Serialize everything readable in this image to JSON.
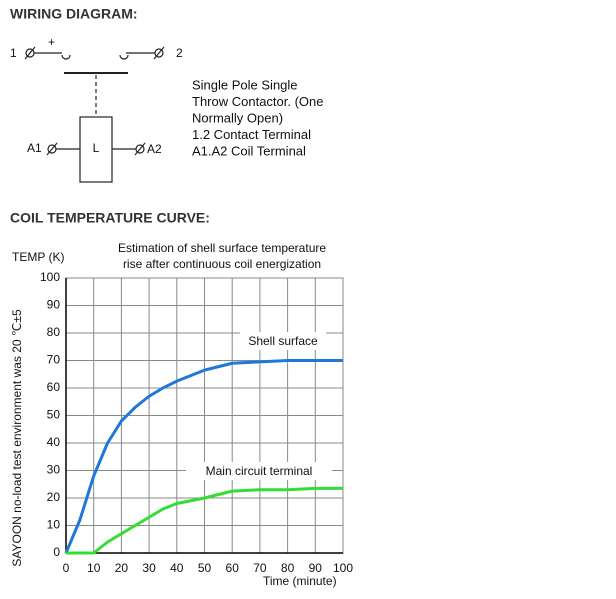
{
  "headings": [
    "WIRING DIAGRAM:",
    "COIL TEMPERATURE CURVE:"
  ],
  "wiring": {
    "terminal_1": "1",
    "plus": "+",
    "terminal_2": "2",
    "coil_a1": "A1",
    "coil": "L",
    "coil_a2": "A2",
    "description": [
      "Single Pole Single",
      "Throw Contactor. (One",
      "Normally Open)",
      "1.2 Contact Terminal",
      "A1.A2 Coil Terminal"
    ]
  },
  "chart_data": {
    "type": "line",
    "title": [
      "Estimation of shell surface temperature",
      "rise after continuous coil energization"
    ],
    "y_label": "TEMP (K)",
    "x_label": "Time (minute)",
    "side_note": "SAYOON no-load test environment was 20 ℃±5",
    "xlim": [
      0,
      100
    ],
    "ylim": [
      0,
      100
    ],
    "xticks": [
      0,
      10,
      20,
      30,
      40,
      50,
      60,
      70,
      80,
      90,
      100
    ],
    "yticks": [
      0,
      10,
      20,
      30,
      40,
      50,
      60,
      70,
      80,
      90,
      100
    ],
    "grid": true,
    "series": [
      {
        "name": "Shell surface",
        "color": "#1f78d8",
        "x": [
          0,
          5,
          10,
          15,
          20,
          25,
          30,
          35,
          40,
          50,
          60,
          70,
          80,
          90,
          100
        ],
        "values": [
          0,
          12,
          28,
          40,
          48,
          53,
          57,
          60,
          62.5,
          66.5,
          69,
          69.5,
          70,
          70,
          70
        ]
      },
      {
        "name": "Main circuit terminal",
        "color": "#33dd33",
        "x": [
          0,
          10,
          15,
          20,
          25,
          30,
          35,
          40,
          50,
          60,
          70,
          80,
          90,
          100
        ],
        "values": [
          0,
          0,
          4,
          7,
          10,
          13,
          16,
          18,
          20,
          22.5,
          23,
          23,
          23.5,
          23.5
        ]
      }
    ]
  }
}
